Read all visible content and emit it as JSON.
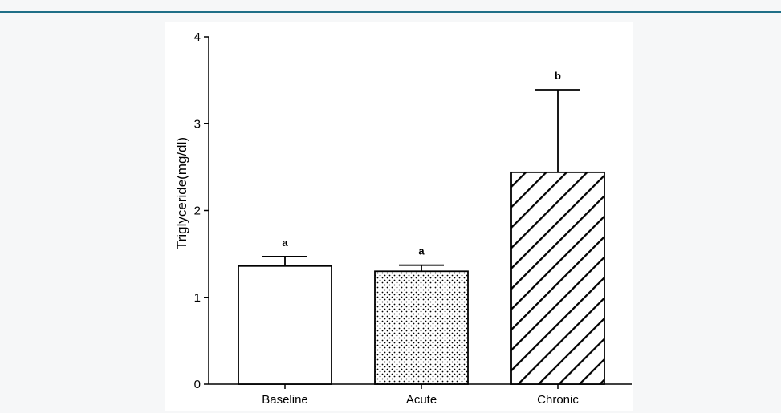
{
  "chart_data": {
    "type": "bar",
    "title": "",
    "xlabel": "",
    "ylabel": "Triglyceride(mg/dl)",
    "ylim": [
      0,
      4
    ],
    "yticks": [
      "0",
      "1",
      "2",
      "3",
      "4"
    ],
    "grid": false,
    "categories": [
      "Baseline",
      "Acute",
      "Chronic"
    ],
    "values": [
      1.36,
      1.3,
      2.44
    ],
    "errors": [
      0.11,
      0.07,
      0.95
    ],
    "significance_labels": [
      "a",
      "a",
      "b"
    ],
    "fills": [
      "white",
      "dotted",
      "diagonal-hatch"
    ]
  }
}
